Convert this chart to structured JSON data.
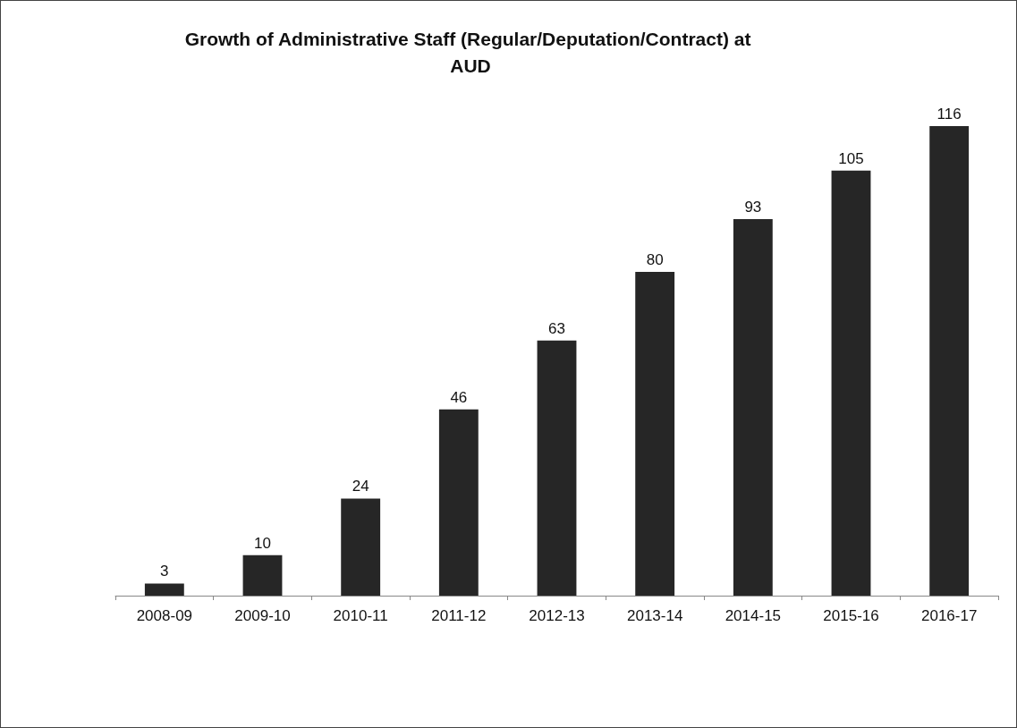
{
  "chart_data": {
    "type": "bar",
    "title": "Growth of Administrative Staff (Regular/Deputation/Contract) at AUD",
    "categories": [
      "2008-09",
      "2009-10",
      "2010-11",
      "2011-12",
      "2012-13",
      "2013-14",
      "2014-15",
      "2015-16",
      "2016-17"
    ],
    "values": [
      3,
      10,
      24,
      46,
      63,
      80,
      93,
      105,
      116
    ],
    "color": "#262626",
    "data_labels": true
  }
}
